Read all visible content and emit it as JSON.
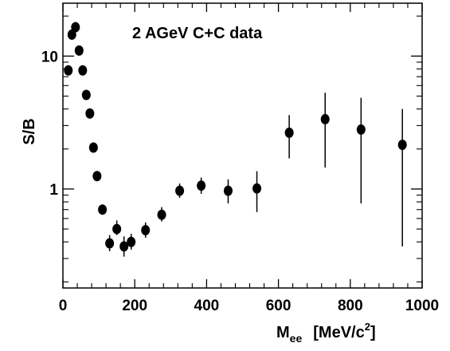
{
  "chart_data": {
    "type": "scatter",
    "title": "2 AGeV  C+C  data",
    "ylabel": "S/B",
    "xlabel": {
      "main": "M",
      "subscript": "ee",
      "unit_prefix": "[MeV/c",
      "unit_superscript": "2",
      "unit_suffix": "]"
    },
    "xlim": [
      0,
      1000
    ],
    "ylim": [
      0.18,
      25
    ],
    "yscale": "log",
    "x_ticks": [
      0,
      200,
      400,
      600,
      800,
      1000
    ],
    "x_tick_labels": [
      "0",
      "200",
      "400",
      "600",
      "800",
      "1000"
    ],
    "y_ticks": [
      1,
      10
    ],
    "y_tick_labels": [
      "1",
      "10"
    ],
    "grid": false,
    "series": [
      {
        "marker": "circle",
        "color": "#000000",
        "points": [
          {
            "x": 15,
            "y": 7.8,
            "y_low": 7.8,
            "y_high": 7.8
          },
          {
            "x": 25,
            "y": 14.5,
            "y_low": 14.5,
            "y_high": 14.5
          },
          {
            "x": 35,
            "y": 16.5,
            "y_low": 16.5,
            "y_high": 16.5
          },
          {
            "x": 45,
            "y": 11.0,
            "y_low": 11.0,
            "y_high": 11.0
          },
          {
            "x": 55,
            "y": 7.8,
            "y_low": 7.8,
            "y_high": 7.8
          },
          {
            "x": 65,
            "y": 5.1,
            "y_low": 5.1,
            "y_high": 5.1
          },
          {
            "x": 75,
            "y": 3.7,
            "y_low": 3.7,
            "y_high": 3.7
          },
          {
            "x": 85,
            "y": 2.05,
            "y_low": 2.05,
            "y_high": 2.05
          },
          {
            "x": 95,
            "y": 1.25,
            "y_low": 1.25,
            "y_high": 1.25
          },
          {
            "x": 110,
            "y": 0.7,
            "y_low": 0.7,
            "y_high": 0.7
          },
          {
            "x": 130,
            "y": 0.39,
            "y_low": 0.34,
            "y_high": 0.45
          },
          {
            "x": 150,
            "y": 0.5,
            "y_low": 0.45,
            "y_high": 0.58
          },
          {
            "x": 170,
            "y": 0.37,
            "y_low": 0.31,
            "y_high": 0.44
          },
          {
            "x": 190,
            "y": 0.4,
            "y_low": 0.35,
            "y_high": 0.46
          },
          {
            "x": 230,
            "y": 0.49,
            "y_low": 0.43,
            "y_high": 0.56
          },
          {
            "x": 275,
            "y": 0.64,
            "y_low": 0.57,
            "y_high": 0.73
          },
          {
            "x": 325,
            "y": 0.97,
            "y_low": 0.86,
            "y_high": 1.1
          },
          {
            "x": 385,
            "y": 1.06,
            "y_low": 0.92,
            "y_high": 1.22
          },
          {
            "x": 460,
            "y": 0.97,
            "y_low": 0.78,
            "y_high": 1.18
          },
          {
            "x": 540,
            "y": 1.01,
            "y_low": 0.67,
            "y_high": 1.36
          },
          {
            "x": 630,
            "y": 2.65,
            "y_low": 1.7,
            "y_high": 3.6
          },
          {
            "x": 730,
            "y": 3.35,
            "y_low": 1.45,
            "y_high": 5.3
          },
          {
            "x": 830,
            "y": 2.8,
            "y_low": 0.78,
            "y_high": 4.85
          },
          {
            "x": 945,
            "y": 2.15,
            "y_low": 0.37,
            "y_high": 4.0
          }
        ]
      }
    ]
  }
}
